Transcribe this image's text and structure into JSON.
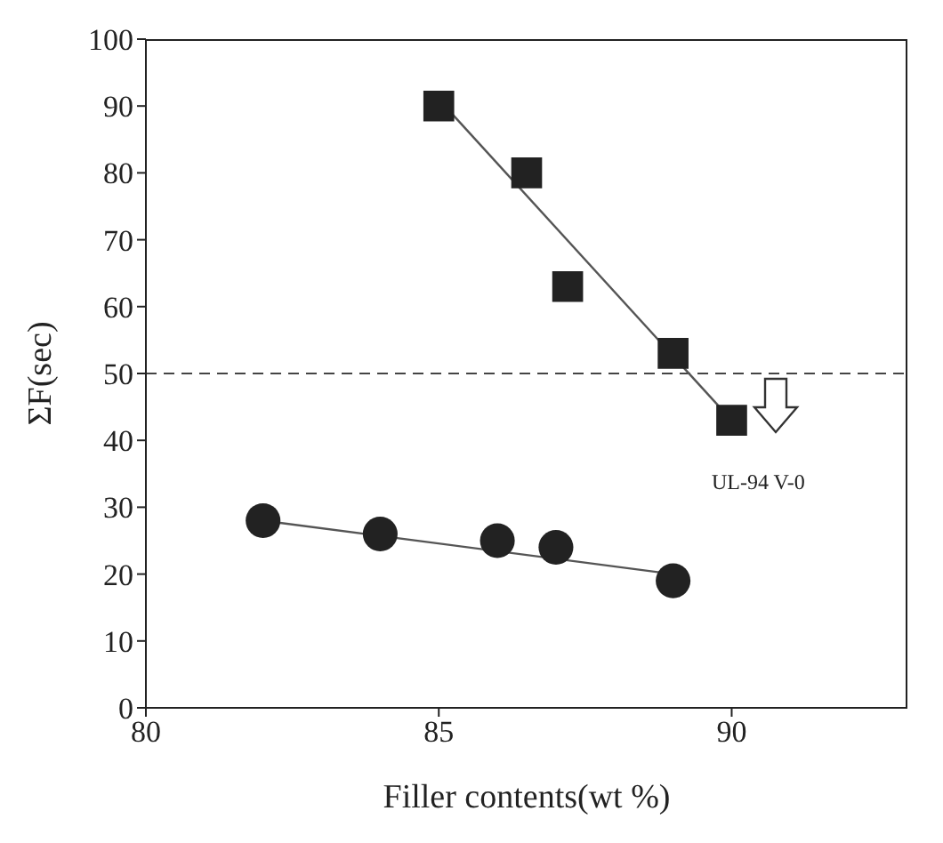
{
  "chart_data": {
    "type": "scatter",
    "xlabel": "Filler contents(wt %)",
    "ylabel": "ΣF(sec)",
    "xlim": [
      80,
      93
    ],
    "xticks": [
      80,
      85,
      90
    ],
    "ylim": [
      0,
      100
    ],
    "yticks": [
      0,
      10,
      20,
      30,
      40,
      50,
      60,
      70,
      80,
      90,
      100
    ],
    "series": [
      {
        "marker": "square",
        "color": "#222222",
        "x": [
          85,
          86.5,
          87.2,
          89,
          90
        ],
        "values": [
          90,
          80,
          63,
          53,
          43
        ]
      },
      {
        "marker": "circle",
        "color": "#222222",
        "x": [
          82,
          84,
          86,
          87,
          89
        ],
        "values": [
          28,
          26,
          25,
          24,
          19
        ]
      },
      {
        "type": "line",
        "marker": "none",
        "color": "#555555",
        "x": [
          85,
          90
        ],
        "values": [
          91,
          43
        ]
      },
      {
        "type": "line",
        "marker": "none",
        "color": "#555555",
        "x": [
          82,
          89
        ],
        "values": [
          28,
          20
        ]
      }
    ],
    "ref_lines": [
      {
        "axis": "y",
        "value": 50,
        "color": "#444444",
        "line_style": "dashed"
      }
    ],
    "annotations": [
      "UL-94 V-0"
    ]
  }
}
